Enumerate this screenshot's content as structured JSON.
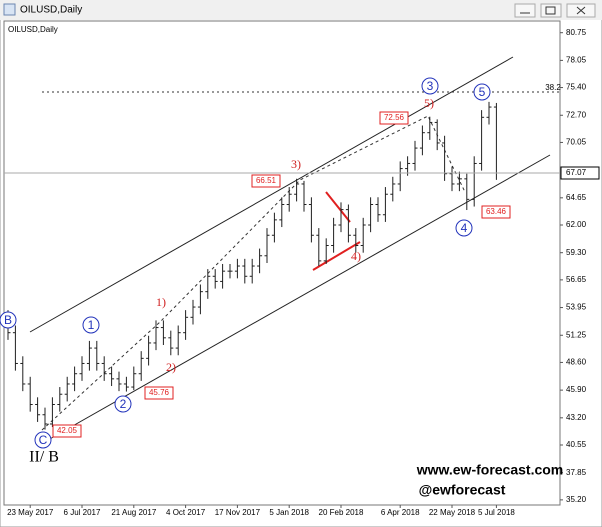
{
  "window_title": "OILUSD,Daily",
  "chart_data": {
    "type": "ohlc",
    "title": "OILUSD,Daily",
    "color": "#202020",
    "categories": [
      null,
      null,
      null,
      "23 May 2017",
      null,
      null,
      null,
      null,
      null,
      null,
      "6 Jul 2017",
      null,
      null,
      null,
      null,
      null,
      null,
      "21 Aug 2017",
      null,
      null,
      null,
      null,
      null,
      null,
      "4 Oct 2017",
      null,
      null,
      null,
      null,
      null,
      null,
      "17 Nov 2017",
      null,
      null,
      null,
      null,
      null,
      null,
      "5 Jan 2018",
      null,
      null,
      null,
      null,
      null,
      null,
      "20 Feb 2018",
      null,
      null,
      null,
      null,
      null,
      null,
      null,
      "6 Apr 2018",
      null,
      null,
      null,
      null,
      null,
      null,
      "22 May 2018",
      null,
      null,
      null,
      null,
      null,
      "5 Jul 2018"
    ],
    "open": [
      53.0,
      51.5,
      48.5,
      46.5,
      44.5,
      43.5,
      42.6,
      44.5,
      45.5,
      46.5,
      47.5,
      48.5,
      50.0,
      48.5,
      47.5,
      47.0,
      46.5,
      46.2,
      47.5,
      49.0,
      50.5,
      52.0,
      51.0,
      50.0,
      51.5,
      53.0,
      54.0,
      55.5,
      57.0,
      56.5,
      57.5,
      57.5,
      58.0,
      57.0,
      58.0,
      59.0,
      61.0,
      62.5,
      64.0,
      65.0,
      66.0,
      64.0,
      61.0,
      58.5,
      60.0,
      62.0,
      63.5,
      61.0,
      60.0,
      62.0,
      64.0,
      63.0,
      65.0,
      66.0,
      67.5,
      68.0,
      69.5,
      71.0,
      72.0,
      70.0,
      67.0,
      66.0,
      66.5,
      64.5,
      68.0,
      72.5,
      73.5
    ],
    "high": [
      53.7,
      52.2,
      49.2,
      47.2,
      45.2,
      44.2,
      45.2,
      46.2,
      47.2,
      48.2,
      49.2,
      50.7,
      50.7,
      49.2,
      48.2,
      47.7,
      47.2,
      48.2,
      49.7,
      51.2,
      52.7,
      52.7,
      51.7,
      52.2,
      53.7,
      54.7,
      56.2,
      57.7,
      57.7,
      58.2,
      58.2,
      58.7,
      58.7,
      58.7,
      59.7,
      61.7,
      63.2,
      64.7,
      65.7,
      66.51,
      66.3,
      64.7,
      61.7,
      60.7,
      62.7,
      64.2,
      64.0,
      61.7,
      62.7,
      64.7,
      64.7,
      65.7,
      66.7,
      68.2,
      68.7,
      70.2,
      71.7,
      72.56,
      72.3,
      70.7,
      67.7,
      67.2,
      67.0,
      68.7,
      73.2,
      74.0,
      73.9
    ],
    "low": [
      50.8,
      47.8,
      45.8,
      43.8,
      42.8,
      42.05,
      42.3,
      43.8,
      44.8,
      45.8,
      46.8,
      47.8,
      47.8,
      46.8,
      46.3,
      45.8,
      45.76,
      45.9,
      46.8,
      48.3,
      49.8,
      50.3,
      49.3,
      49.3,
      50.8,
      52.3,
      53.3,
      54.8,
      55.8,
      55.8,
      56.8,
      56.8,
      56.3,
      56.3,
      57.3,
      58.3,
      60.3,
      61.8,
      63.3,
      64.3,
      63.3,
      60.3,
      58.0,
      58.2,
      59.3,
      61.3,
      60.3,
      59.3,
      59.3,
      61.3,
      62.3,
      62.3,
      64.3,
      65.3,
      66.8,
      67.3,
      68.8,
      70.3,
      69.3,
      66.3,
      65.3,
      65.3,
      63.46,
      63.8,
      67.3,
      71.8,
      66.4
    ],
    "close": [
      51.5,
      48.5,
      46.5,
      44.5,
      43.5,
      42.6,
      44.5,
      45.5,
      46.5,
      47.5,
      48.5,
      50.0,
      48.5,
      47.5,
      47.0,
      46.5,
      46.2,
      47.5,
      49.0,
      50.5,
      52.0,
      51.0,
      50.0,
      51.5,
      53.0,
      54.0,
      55.5,
      57.0,
      56.5,
      57.5,
      57.5,
      58.0,
      57.0,
      58.0,
      59.0,
      61.0,
      62.5,
      64.0,
      65.0,
      66.0,
      64.0,
      61.0,
      58.5,
      60.0,
      62.0,
      63.5,
      61.0,
      60.0,
      62.0,
      64.0,
      63.0,
      65.0,
      66.0,
      67.5,
      68.0,
      69.5,
      71.0,
      72.0,
      70.0,
      67.0,
      66.0,
      66.5,
      64.5,
      68.0,
      72.5,
      73.5,
      67.07
    ],
    "ylim": [
      34.7,
      81.5
    ],
    "yticks": [
      80.75,
      78.05,
      {
        "value": 75.4,
        "label": "75.40"
      },
      {
        "value": 72.7,
        "label": "72.70"
      },
      70.05,
      64.65,
      {
        "value": 62.0,
        "label": "62.00"
      },
      {
        "value": 59.3,
        "label": "59.30"
      },
      56.65,
      53.95,
      51.25,
      {
        "value": 48.6,
        "label": "48.60"
      },
      {
        "value": 45.9,
        "label": "45.90"
      },
      {
        "value": 43.2,
        "label": "43.20"
      },
      40.55,
      37.85,
      {
        "value": 35.2,
        "label": "35.20"
      }
    ],
    "annotations": [
      {
        "text": "3",
        "style": "circle"
      },
      {
        "text": "5",
        "style": "circle"
      },
      {
        "text": "4",
        "style": "circle"
      },
      {
        "text": "1",
        "style": "circle"
      },
      {
        "text": "2",
        "style": "circle"
      },
      {
        "text": "B",
        "style": "circle"
      },
      {
        "text": "C",
        "style": "circle"
      },
      {
        "text": "1)",
        "style": "wave"
      },
      {
        "text": "2)",
        "style": "wave"
      },
      {
        "text": "3)",
        "style": "wave"
      },
      {
        "text": "4)",
        "style": "wave"
      },
      {
        "text": "5)",
        "style": "wave"
      },
      {
        "text": "II/ B",
        "style": "degree"
      },
      {
        "text": "38.2",
        "style": "fib"
      },
      {
        "text": "www.ew-forecast.com",
        "style": "watermark"
      },
      {
        "text": "@ewforecast",
        "style": "watermark"
      }
    ]
  }
}
